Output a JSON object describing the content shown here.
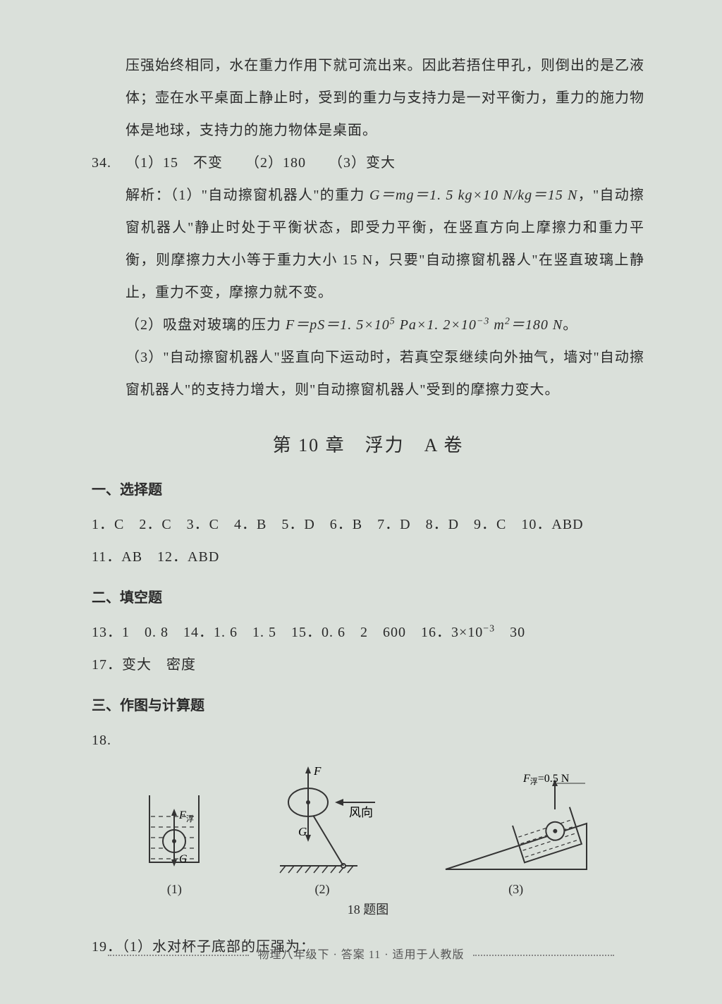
{
  "intro_paragraph": "压强始终相同，水在重力作用下就可流出来。因此若捂住甲孔，则倒出的是乙液体；壶在水平桌面上静止时，受到的重力与支持力是一对平衡力，重力的施力物体是地球，支持力的施力物体是桌面。",
  "q34": {
    "number": "34.",
    "answers_line": "（1）15　不变　　（2）180　　（3）变大",
    "analysis_1_prefix": "解析：（1）\"自动擦窗机器人\"的重力 ",
    "analysis_1_formula": "G＝mg＝1. 5 kg×10 N/kg＝15 N",
    "analysis_1_suffix": "，\"自动擦窗机器人\"静止时处于平衡状态，即受力平衡，在竖直方向上摩擦力和重力平衡，则摩擦力大小等于重力大小 15 N，只要\"自动擦窗机器人\"在竖直玻璃上静止，重力不变，摩擦力就不变。",
    "analysis_2_prefix": "（2）吸盘对玻璃的压力 ",
    "analysis_2_formula_html": "F＝pS＝1. 5×10<sup>5</sup> Pa×1. 2×10<sup>−3</sup> m<sup>2</sup>＝180 N",
    "analysis_2_suffix": "。",
    "analysis_3": "（3）\"自动擦窗机器人\"竖直向下运动时，若真空泵继续向外抽气，墙对\"自动擦窗机器人\"的支持力增大，则\"自动擦窗机器人\"受到的摩擦力变大。"
  },
  "chapter_title": "第 10 章　浮力　A 卷",
  "sec1": {
    "heading": "一、选择题",
    "line1": "1．C　2．C　3．C　4．B　5．D　6．B　7．D　8．D　9．C　10．ABD",
    "line2": "11．AB　12．ABD"
  },
  "sec2": {
    "heading": "二、填空题",
    "line1_html": "13．1　0. 8　14．1. 6　1. 5　15．0. 6　2　600　16．3×10<sup>−3</sup>　30",
    "line2": "17．变大　密度"
  },
  "sec3": {
    "heading": "三、作图与计算题",
    "q18_number": "18.",
    "diagram_labels": {
      "d1": "(1)",
      "d2": "(2)",
      "d3": "(3)"
    },
    "diagram_texts": {
      "d1_F": "F浮",
      "d1_G": "G",
      "d2_F": "F",
      "d2_G": "G",
      "d2_wind": "风向",
      "d3_label": "F浮=0.5 N"
    },
    "caption": "18 题图",
    "q19": "19．（1）水对杯子底部的压强为："
  },
  "footer": "物理八年级下 · 答案 11 · 适用于人教版",
  "colors": {
    "page_bg": "#dae0da",
    "text": "#2a2a2a",
    "stroke": "#333333",
    "water_fill": "none"
  }
}
